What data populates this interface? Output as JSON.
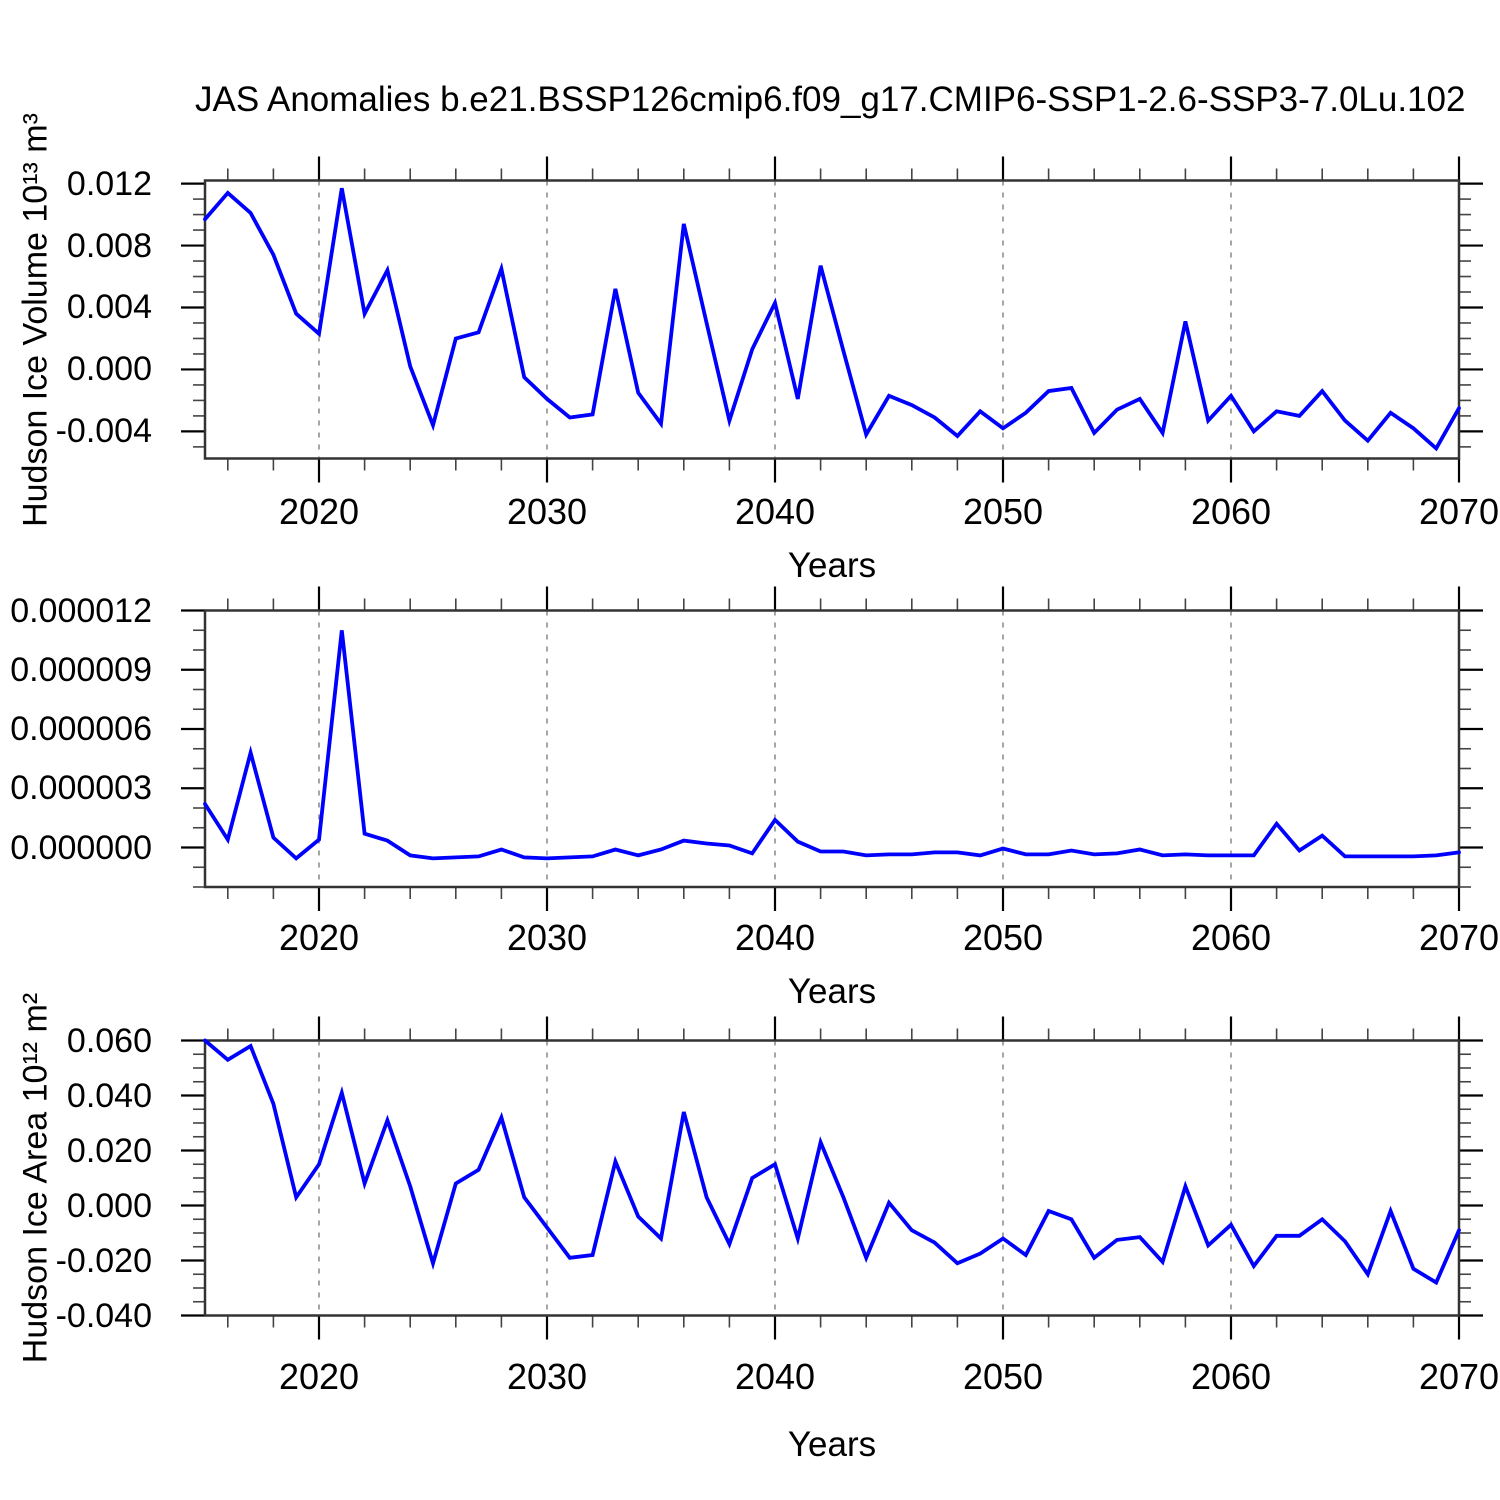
{
  "title": "JAS Anomalies b.e21.BSSP126cmip6.f09_g17.CMIP6-SSP1-2.6-SSP3-7.0Lu.102",
  "colors": {
    "line": "#0000ff",
    "grid": "#808080",
    "frame": "#333333",
    "tick_major": "#000000",
    "tick_minor": "#444444",
    "text": "#000000",
    "background": "#ffffff"
  },
  "years": [
    2015,
    2016,
    2017,
    2018,
    2019,
    2020,
    2021,
    2022,
    2023,
    2024,
    2025,
    2026,
    2027,
    2028,
    2029,
    2030,
    2031,
    2032,
    2033,
    2034,
    2035,
    2036,
    2037,
    2038,
    2039,
    2040,
    2041,
    2042,
    2043,
    2044,
    2045,
    2046,
    2047,
    2048,
    2049,
    2050,
    2051,
    2052,
    2053,
    2054,
    2055,
    2056,
    2057,
    2058,
    2059,
    2060,
    2061,
    2062,
    2063,
    2064,
    2065,
    2066,
    2067,
    2068,
    2069,
    2070
  ],
  "chart_data": [
    {
      "type": "line",
      "name": "hudson_ice_volume",
      "ylabel": "Hudson Ice Volume 10¹³ m³",
      "xlabel": "Years",
      "xlim": [
        2015,
        2070
      ],
      "ylim": [
        -0.00575,
        0.0122
      ],
      "yticks": [
        {
          "label": "0.012",
          "value": 0.012
        },
        {
          "label": "0.008",
          "value": 0.008
        },
        {
          "label": "0.004",
          "value": 0.004
        },
        {
          "label": "0.000",
          "value": 0.0
        },
        {
          "label": "-0.004",
          "value": -0.004
        }
      ],
      "ytick_minor_step": 0.001,
      "xticks": [
        {
          "label": "2020",
          "value": 2020
        },
        {
          "label": "2030",
          "value": 2030
        },
        {
          "label": "2040",
          "value": 2040
        },
        {
          "label": "2050",
          "value": 2050
        },
        {
          "label": "2060",
          "value": 2060
        },
        {
          "label": "2070",
          "value": 2070
        }
      ],
      "xtick_minor_step": 2,
      "gridlines_x": [
        2020,
        2030,
        2040,
        2050,
        2060
      ],
      "values": [
        0.0097,
        0.0114,
        0.0101,
        0.0074,
        0.0036,
        0.0023,
        0.0117,
        0.0036,
        0.0064,
        0.0002,
        -0.0036,
        0.002,
        0.0024,
        0.0065,
        -0.0005,
        -0.0019,
        -0.0031,
        -0.0029,
        0.0052,
        -0.0015,
        -0.0035,
        0.0094,
        0.003,
        -0.0033,
        0.0013,
        0.0043,
        -0.0019,
        0.0067,
        0.0012,
        -0.0042,
        -0.0017,
        -0.0023,
        -0.0031,
        -0.0043,
        -0.0027,
        -0.0038,
        -0.0028,
        -0.0014,
        -0.0012,
        -0.0041,
        -0.0026,
        -0.0019,
        -0.0041,
        0.0031,
        -0.0033,
        -0.0017,
        -0.004,
        -0.0027,
        -0.003,
        -0.0014,
        -0.0033,
        -0.0046,
        -0.0028,
        -0.0038,
        -0.0051,
        -0.0025
      ]
    },
    {
      "type": "line",
      "name": "hudson_ice_middle_series",
      "ylabel": "",
      "xlabel": "Years",
      "xlim": [
        2015,
        2070
      ],
      "ylim": [
        -2e-06,
        1.2e-05
      ],
      "yticks": [
        {
          "label": "0.000012",
          "value": 1.2e-05
        },
        {
          "label": "0.000009",
          "value": 9e-06
        },
        {
          "label": "0.000006",
          "value": 6e-06
        },
        {
          "label": "0.000003",
          "value": 3e-06
        },
        {
          "label": "0.000000",
          "value": 0.0
        }
      ],
      "ytick_minor_step": 1e-06,
      "xticks": [
        {
          "label": "2020",
          "value": 2020
        },
        {
          "label": "2030",
          "value": 2030
        },
        {
          "label": "2040",
          "value": 2040
        },
        {
          "label": "2050",
          "value": 2050
        },
        {
          "label": "2060",
          "value": 2060
        },
        {
          "label": "2070",
          "value": 2070
        }
      ],
      "xtick_minor_step": 2,
      "gridlines_x": [
        2020,
        2030,
        2040,
        2050,
        2060
      ],
      "values": [
        2.2e-06,
        4e-07,
        4.8e-06,
        5e-07,
        -5.5e-07,
        4e-07,
        1.1e-05,
        7e-07,
        3.5e-07,
        -4e-07,
        -5.5e-07,
        -5e-07,
        -4.5e-07,
        -1e-07,
        -5e-07,
        -5.5e-07,
        -5e-07,
        -4.5e-07,
        -1e-07,
        -4e-07,
        -1e-07,
        3.5e-07,
        2e-07,
        1e-07,
        -3e-07,
        1.4e-06,
        3e-07,
        -2e-07,
        -2e-07,
        -4e-07,
        -3.5e-07,
        -3.5e-07,
        -2.5e-07,
        -2.5e-07,
        -4e-07,
        -5e-08,
        -3.5e-07,
        -3.5e-07,
        -1.5e-07,
        -3.5e-07,
        -3e-07,
        -1e-07,
        -4e-07,
        -3.5e-07,
        -4e-07,
        -4e-07,
        -4e-07,
        1.2e-06,
        -1.5e-07,
        6e-07,
        -4.5e-07,
        -4.5e-07,
        -4.5e-07,
        -4.5e-07,
        -4e-07,
        -2.5e-07
      ]
    },
    {
      "type": "line",
      "name": "hudson_ice_area",
      "ylabel": "Hudson Ice Area 10¹² m²",
      "xlabel": "Years",
      "xlim": [
        2015,
        2070
      ],
      "ylim": [
        -0.04,
        0.06
      ],
      "yticks": [
        {
          "label": "0.060",
          "value": 0.06
        },
        {
          "label": "0.040",
          "value": 0.04
        },
        {
          "label": "0.020",
          "value": 0.02
        },
        {
          "label": "0.000",
          "value": 0.0
        },
        {
          "label": "-0.020",
          "value": -0.02
        },
        {
          "label": "-0.040",
          "value": -0.04
        }
      ],
      "ytick_minor_step": 0.005,
      "xticks": [
        {
          "label": "2020",
          "value": 2020
        },
        {
          "label": "2030",
          "value": 2030
        },
        {
          "label": "2040",
          "value": 2040
        },
        {
          "label": "2050",
          "value": 2050
        },
        {
          "label": "2060",
          "value": 2060
        },
        {
          "label": "2070",
          "value": 2070
        }
      ],
      "xtick_minor_step": 2,
      "gridlines_x": [
        2020,
        2030,
        2040,
        2050,
        2060
      ],
      "values": [
        0.06,
        0.053,
        0.058,
        0.037,
        0.003,
        0.015,
        0.041,
        0.008,
        0.031,
        0.007,
        -0.021,
        0.008,
        0.013,
        0.032,
        0.003,
        -0.008,
        -0.019,
        -0.018,
        0.016,
        -0.004,
        -0.012,
        0.034,
        0.003,
        -0.014,
        0.01,
        0.015,
        -0.012,
        0.023,
        0.003,
        -0.019,
        0.001,
        -0.009,
        -0.0135,
        -0.021,
        -0.0175,
        -0.012,
        -0.018,
        -0.002,
        -0.005,
        -0.019,
        -0.0125,
        -0.0115,
        -0.0205,
        0.007,
        -0.0145,
        -0.007,
        -0.022,
        -0.011,
        -0.011,
        -0.005,
        -0.013,
        -0.025,
        -0.002,
        -0.023,
        -0.028,
        -0.009
      ]
    }
  ]
}
